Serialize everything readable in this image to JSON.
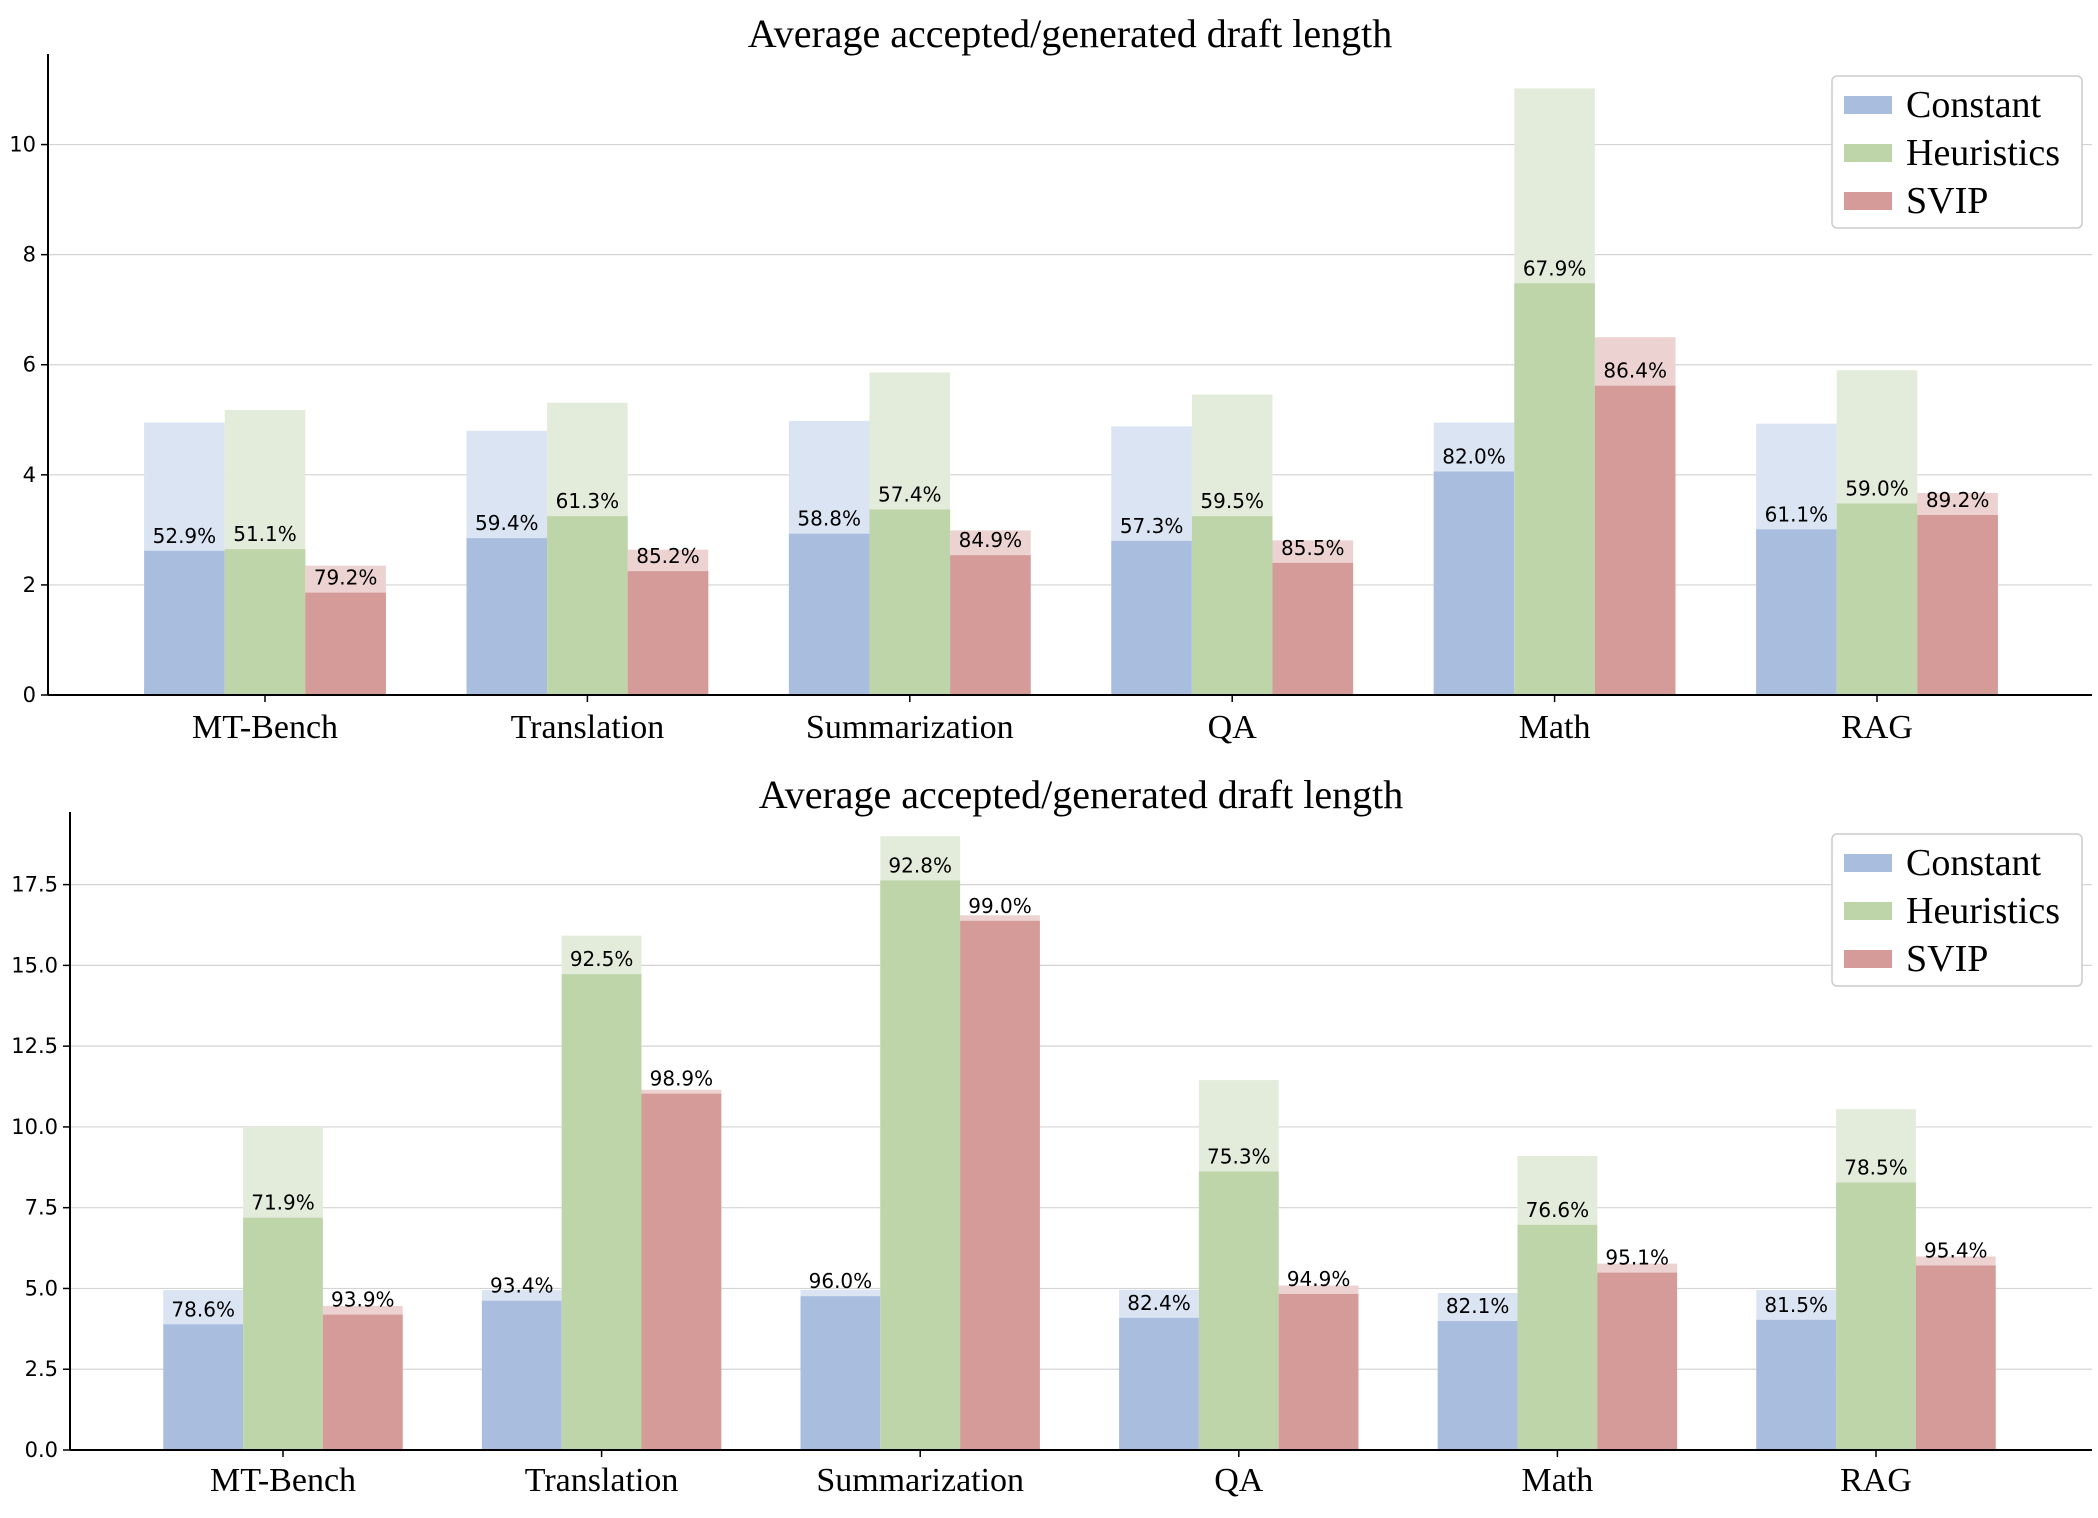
{
  "colors": {
    "Constant": "#a9bedf",
    "Constant_light": "#dae4f3",
    "Heuristics": "#bed5aa",
    "Heuristics_light": "#e3ecdb",
    "SVIP": "#d49b98",
    "SVIP_light": "#ecd3d1"
  },
  "chart_data": [
    {
      "type": "bar",
      "title": "Average accepted/generated draft length",
      "categories": [
        "MT-Bench",
        "Translation",
        "Summarization",
        "QA",
        "Math",
        "RAG"
      ],
      "ylim": [
        0,
        11.5
      ],
      "yticks": [
        "0",
        "2",
        "4",
        "6",
        "8",
        "10"
      ],
      "ytick_values": [
        0,
        2,
        4,
        6,
        8,
        10
      ],
      "grid": "horizontal",
      "legend_position": "top-right",
      "series": [
        {
          "name": "Constant",
          "generated": [
            4.95,
            4.8,
            4.98,
            4.88,
            4.95,
            4.93
          ],
          "accepted": [
            2.62,
            2.85,
            2.93,
            2.8,
            4.06,
            3.01
          ],
          "labels": [
            "52.9%",
            "59.4%",
            "58.8%",
            "57.3%",
            "82.0%",
            "61.1%"
          ]
        },
        {
          "name": "Heuristics",
          "generated": [
            5.18,
            5.31,
            5.86,
            5.46,
            11.02,
            5.9
          ],
          "accepted": [
            2.65,
            3.25,
            3.37,
            3.25,
            7.48,
            3.48
          ],
          "labels": [
            "51.1%",
            "61.3%",
            "57.4%",
            "59.5%",
            "67.9%",
            "59.0%"
          ]
        },
        {
          "name": "SVIP",
          "generated": [
            2.35,
            2.64,
            2.99,
            2.81,
            6.5,
            3.67
          ],
          "accepted": [
            1.86,
            2.25,
            2.54,
            2.4,
            5.62,
            3.27
          ],
          "labels": [
            "79.2%",
            "85.2%",
            "84.9%",
            "85.5%",
            "86.4%",
            "89.2%"
          ]
        }
      ]
    },
    {
      "type": "bar",
      "title": "Average accepted/generated draft length",
      "categories": [
        "MT-Bench",
        "Translation",
        "Summarization",
        "QA",
        "Math",
        "RAG"
      ],
      "ylim": [
        0,
        19.5
      ],
      "yticks": [
        "0.0",
        "2.5",
        "5.0",
        "7.5",
        "10.0",
        "12.5",
        "15.0",
        "17.5"
      ],
      "ytick_values": [
        0,
        2.5,
        5,
        7.5,
        10,
        12.5,
        15,
        17.5
      ],
      "grid": "horizontal",
      "legend_position": "top-right",
      "series": [
        {
          "name": "Constant",
          "generated": [
            4.95,
            4.95,
            4.96,
            4.96,
            4.86,
            4.95
          ],
          "accepted": [
            3.89,
            4.62,
            4.76,
            4.09,
            3.99,
            4.03
          ],
          "labels": [
            "78.6%",
            "93.4%",
            "96.0%",
            "82.4%",
            "82.1%",
            "81.5%"
          ]
        },
        {
          "name": "Heuristics",
          "generated": [
            10.0,
            15.92,
            19.0,
            11.45,
            9.1,
            10.55
          ],
          "accepted": [
            7.19,
            14.73,
            17.63,
            8.62,
            6.97,
            8.28
          ],
          "labels": [
            "71.9%",
            "92.5%",
            "92.8%",
            "75.3%",
            "76.6%",
            "78.5%"
          ]
        },
        {
          "name": "SVIP",
          "generated": [
            4.46,
            11.15,
            16.55,
            5.09,
            5.77,
            5.99
          ],
          "accepted": [
            4.19,
            11.03,
            16.38,
            4.83,
            5.49,
            5.71
          ],
          "labels": [
            "93.9%",
            "98.9%",
            "99.0%",
            "94.9%",
            "95.1%",
            "95.4%"
          ]
        }
      ]
    }
  ]
}
